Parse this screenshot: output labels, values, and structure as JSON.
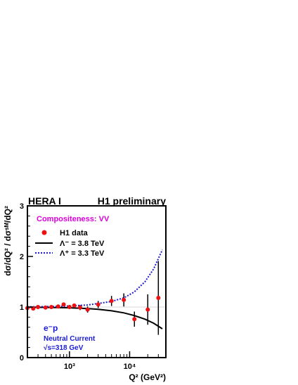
{
  "header": {
    "left": "HERA I",
    "right": "H1 preliminary"
  },
  "annotations": {
    "model": "Compositeness:  VV",
    "beam": "e⁻p",
    "process": "Neutral Current",
    "energy": "√s=318 GeV"
  },
  "colors": {
    "data": "#ee1111",
    "lambda_minus": "#000000",
    "lambda_plus": "#1a1ad6",
    "model_text": "#dd00dd",
    "annotation_text": "#1a1ad6"
  },
  "chart_data": {
    "type": "scatter",
    "xscale": "log",
    "xlim": [
      200,
      40000
    ],
    "ylim": [
      0,
      3
    ],
    "xlabel": "Q² (GeV²)",
    "ylabel": "dσ/dQ² / dσˢᴹ/dQ²",
    "x_ticks": [
      {
        "value": 1000,
        "label": "10³"
      },
      {
        "value": 10000,
        "label": "10⁴"
      }
    ],
    "y_ticks": [
      0,
      1,
      2,
      3
    ],
    "reference_line": 1,
    "legend_placement": "top-left",
    "series": [
      {
        "name": "H1 data",
        "kind": "points",
        "points": [
          {
            "x": 200,
            "y": 0.98,
            "err": 0.02
          },
          {
            "x": 250,
            "y": 0.97,
            "err": 0.02
          },
          {
            "x": 300,
            "y": 1.0,
            "err": 0.02
          },
          {
            "x": 400,
            "y": 0.99,
            "err": 0.02
          },
          {
            "x": 500,
            "y": 1.0,
            "err": 0.02
          },
          {
            "x": 650,
            "y": 1.01,
            "err": 0.03
          },
          {
            "x": 800,
            "y": 1.05,
            "err": 0.04
          },
          {
            "x": 1000,
            "y": 1.0,
            "err": 0.04
          },
          {
            "x": 1200,
            "y": 1.03,
            "err": 0.04
          },
          {
            "x": 1500,
            "y": 0.99,
            "err": 0.05
          },
          {
            "x": 2000,
            "y": 0.95,
            "err": 0.06
          },
          {
            "x": 3000,
            "y": 1.05,
            "err": 0.07
          },
          {
            "x": 5000,
            "y": 1.12,
            "err": 0.1
          },
          {
            "x": 8000,
            "y": 1.14,
            "err": 0.13
          },
          {
            "x": 12000,
            "y": 0.76,
            "err": 0.15
          },
          {
            "x": 20000,
            "y": 0.95,
            "err": 0.3
          },
          {
            "x": 30000,
            "y": 1.18,
            "err": 0.73
          }
        ]
      },
      {
        "name": "Λ⁻ = 3.8 TeV",
        "kind": "line",
        "style": "solid",
        "x": [
          200,
          500,
          1000,
          2000,
          3000,
          5000,
          8000,
          12000,
          18000,
          25000,
          35000
        ],
        "y": [
          0.997,
          0.992,
          0.985,
          0.97,
          0.955,
          0.925,
          0.885,
          0.83,
          0.76,
          0.68,
          0.57
        ]
      },
      {
        "name": "Λ⁺ = 3.3 TeV",
        "kind": "line",
        "style": "dotted",
        "x": [
          200,
          500,
          1000,
          2000,
          3000,
          5000,
          8000,
          12000,
          18000,
          25000,
          35000
        ],
        "y": [
          1.003,
          1.01,
          1.02,
          1.04,
          1.07,
          1.11,
          1.18,
          1.3,
          1.5,
          1.75,
          2.13
        ]
      }
    ]
  }
}
